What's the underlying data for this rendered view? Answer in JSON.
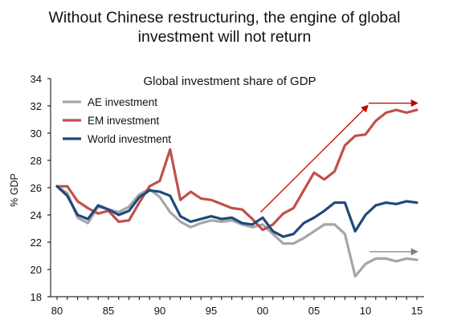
{
  "headline": {
    "line1": "Without Chinese restructuring, the engine of global",
    "line2": "investment will not return"
  },
  "chart_data": {
    "type": "line",
    "title": "Global investment share of GDP",
    "xlabel": "",
    "ylabel": "% GDP",
    "xlim": [
      1980,
      2015
    ],
    "ylim": [
      18,
      34
    ],
    "x_ticks": [
      1980,
      1985,
      1990,
      1995,
      2000,
      2005,
      2010,
      2015
    ],
    "x_tick_labels": [
      "80",
      "85",
      "90",
      "95",
      "00",
      "05",
      "10",
      "15"
    ],
    "y_ticks": [
      18,
      20,
      22,
      24,
      26,
      28,
      30,
      32,
      34
    ],
    "grid": false,
    "legend_position": "top-left",
    "x": [
      1980,
      1981,
      1982,
      1983,
      1984,
      1985,
      1986,
      1987,
      1988,
      1989,
      1990,
      1991,
      1992,
      1993,
      1994,
      1995,
      1996,
      1997,
      1998,
      1999,
      2000,
      2001,
      2002,
      2003,
      2004,
      2005,
      2006,
      2007,
      2008,
      2009,
      2010,
      2011,
      2012,
      2013,
      2014,
      2015
    ],
    "series": [
      {
        "name": "AE investment",
        "color": "#a6a6a6",
        "values": [
          26.1,
          25.6,
          23.8,
          23.4,
          24.6,
          24.4,
          24.2,
          24.6,
          25.5,
          25.9,
          25.3,
          24.2,
          23.5,
          23.1,
          23.4,
          23.6,
          23.5,
          23.6,
          23.3,
          23.1,
          23.3,
          22.6,
          21.9,
          21.9,
          22.3,
          22.8,
          23.3,
          23.3,
          22.6,
          19.5,
          20.4,
          20.8,
          20.8,
          20.6,
          20.8,
          20.7
        ]
      },
      {
        "name": "EM investment",
        "color": "#c0504d",
        "values": [
          26.1,
          26.1,
          25.0,
          24.5,
          24.1,
          24.3,
          23.5,
          23.6,
          24.9,
          26.1,
          26.5,
          28.8,
          25.1,
          25.7,
          25.2,
          25.1,
          24.8,
          24.5,
          24.4,
          23.7,
          22.9,
          23.3,
          24.1,
          24.5,
          25.8,
          27.1,
          26.6,
          27.2,
          29.1,
          29.8,
          29.9,
          30.9,
          31.5,
          31.7,
          31.5,
          31.7
        ]
      },
      {
        "name": "World investment",
        "color": "#1f497d",
        "values": [
          26.1,
          25.4,
          24.0,
          23.7,
          24.7,
          24.4,
          24.0,
          24.3,
          25.3,
          25.8,
          25.7,
          25.4,
          23.9,
          23.5,
          23.7,
          23.9,
          23.7,
          23.8,
          23.4,
          23.3,
          23.8,
          22.8,
          22.4,
          22.6,
          23.4,
          23.8,
          24.3,
          24.9,
          24.9,
          22.8,
          24.0,
          24.7,
          24.9,
          24.8,
          25.0,
          24.9
        ]
      }
    ],
    "annotations": [
      {
        "type": "arrow",
        "color": "#c00000",
        "from": [
          1999.8,
          24.2
        ],
        "to": [
          2010.2,
          32.0
        ]
      },
      {
        "type": "arrow",
        "color": "#c00000",
        "from": [
          2010.3,
          32.2
        ],
        "to": [
          2015.0,
          32.2
        ]
      },
      {
        "type": "arrow",
        "color": "#7f7f7f",
        "from": [
          2010.4,
          21.3
        ],
        "to": [
          2015.0,
          21.3
        ]
      }
    ]
  }
}
